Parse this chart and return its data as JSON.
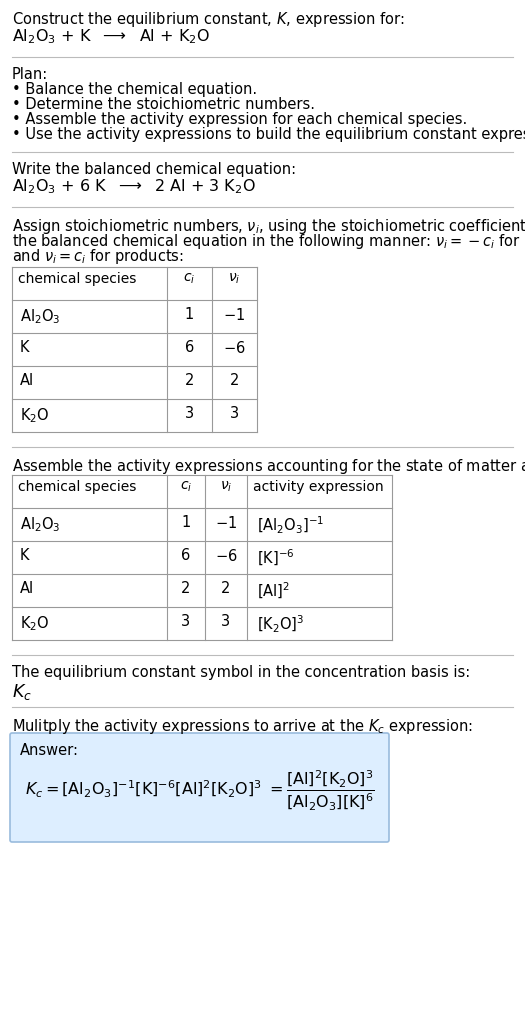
{
  "title_line1": "Construct the equilibrium constant, $K$, expression for:",
  "title_line2": "$\\mathrm{Al_2O_3}$ + K  $\\longrightarrow$  Al + $\\mathrm{K_2O}$",
  "plan_header": "Plan:",
  "plan_items": [
    "• Balance the chemical equation.",
    "• Determine the stoichiometric numbers.",
    "• Assemble the activity expression for each chemical species.",
    "• Use the activity expressions to build the equilibrium constant expression."
  ],
  "balanced_header": "Write the balanced chemical equation:",
  "balanced_eq": "$\\mathrm{Al_2O_3}$ + 6 K  $\\longrightarrow$  2 Al + 3 $\\mathrm{K_2O}$",
  "stoich_header_lines": [
    "Assign stoichiometric numbers, $\\nu_i$, using the stoichiometric coefficients, $c_i$, from",
    "the balanced chemical equation in the following manner: $\\nu_i = -c_i$ for reactants",
    "and $\\nu_i = c_i$ for products:"
  ],
  "table1_headers": [
    "chemical species",
    "$c_i$",
    "$\\nu_i$"
  ],
  "table1_rows": [
    [
      "$\\mathrm{Al_2O_3}$",
      "1",
      "$-1$"
    ],
    [
      "K",
      "6",
      "$-6$"
    ],
    [
      "Al",
      "2",
      "2"
    ],
    [
      "$\\mathrm{K_2O}$",
      "3",
      "3"
    ]
  ],
  "activity_header": "Assemble the activity expressions accounting for the state of matter and $\\nu_i$:",
  "table2_headers": [
    "chemical species",
    "$c_i$",
    "$\\nu_i$",
    "activity expression"
  ],
  "table2_rows": [
    [
      "$\\mathrm{Al_2O_3}$",
      "1",
      "$-1$",
      "$[\\mathrm{Al_2O_3}]^{-1}$"
    ],
    [
      "K",
      "6",
      "$-6$",
      "$[\\mathrm{K}]^{-6}$"
    ],
    [
      "Al",
      "2",
      "2",
      "$[\\mathrm{Al}]^{2}$"
    ],
    [
      "$\\mathrm{K_2O}$",
      "3",
      "3",
      "$[\\mathrm{K_2O}]^{3}$"
    ]
  ],
  "kc_header": "The equilibrium constant symbol in the concentration basis is:",
  "kc_symbol": "$K_c$",
  "multiply_header": "Mulitply the activity expressions to arrive at the $K_c$ expression:",
  "answer_label": "Answer:",
  "bg_color": "#ffffff",
  "text_color": "#000000",
  "answer_box_facecolor": "#ddeeff",
  "answer_box_edgecolor": "#99bbdd",
  "separator_color": "#bbbbbb",
  "table_border_color": "#999999",
  "font_size": 10.5,
  "title_font_size": 10.5,
  "eq_font_size": 11.5,
  "small_font": 10.0
}
